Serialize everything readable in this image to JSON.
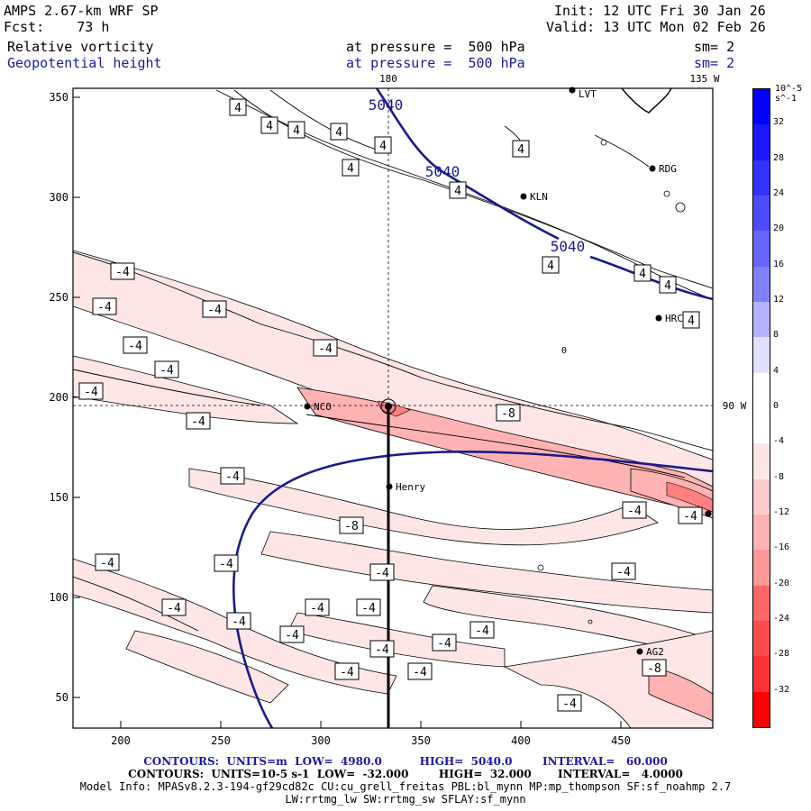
{
  "header": {
    "title": "AMPS 2.67-km WRF SP",
    "fcst_label": "Fcst:",
    "fcst_value": "73 h",
    "init": "Init: 12 UTC Fri 30 Jan 26",
    "valid": "Valid: 13 UTC Mon 02 Feb 26",
    "field1": "Relative vorticity",
    "field1_level": "at pressure =  500 hPa",
    "field1_sm": "sm= 2",
    "field2": "Geopotential height",
    "field2_level": "at pressure =  500 hPa",
    "field2_sm": "sm= 2"
  },
  "map": {
    "lon_180": "180",
    "lon_135w": "135 W",
    "lon_90w": "90 W",
    "x_ticks": [
      "200",
      "250",
      "300",
      "350",
      "400",
      "450"
    ],
    "y_ticks": [
      "350",
      "300",
      "250",
      "200",
      "150",
      "100",
      "50"
    ],
    "stations": [
      "KLN",
      "RDG",
      "HRC",
      "NCO",
      "Henry",
      "AG2",
      "LVT"
    ],
    "height_labels": [
      "5040",
      "5040",
      "5040"
    ],
    "contour_labels_pos": [
      "4",
      "4",
      "4",
      "4",
      "4",
      "4",
      "4",
      "4",
      "4",
      "4",
      "4",
      "4"
    ],
    "contour_labels_neg": [
      "-4",
      "-4",
      "-4",
      "-4",
      "-4",
      "-4",
      "-4",
      "-4",
      "-4",
      "-8",
      "-4",
      "-4",
      "-4",
      "-4",
      "-4",
      "-4",
      "-4",
      "-4",
      "-4",
      "-4",
      "-4",
      "-4",
      "-4",
      "-4",
      "-4",
      "-4",
      "-4",
      "-8"
    ],
    "zero_label": "0"
  },
  "colorbar": {
    "units": "10^-5 s^-1",
    "labels": [
      "32",
      "28",
      "24",
      "20",
      "16",
      "12",
      "8",
      "4",
      "0",
      "-4",
      "-8",
      "-12",
      "-16",
      "-20",
      "-24",
      "-28",
      "-32"
    ],
    "colors": [
      "#0000ff",
      "#1a1aff",
      "#3333ff",
      "#4d4dff",
      "#6666ff",
      "#8080ff",
      "#b3b3ff",
      "#e0e0ff",
      "#ffffff",
      "#ffffff",
      "#ffe6e6",
      "#ffcccc",
      "#ffb3b3",
      "#ff9999",
      "#ff6666",
      "#ff4d4d",
      "#ff3333",
      "#ff0000"
    ]
  },
  "footer": {
    "line1": "CONTOURS:  UNITS=m  LOW=  4980.0          HIGH=  5040.0        INTERVAL=   60.000",
    "line2": "CONTOURS:  UNITS=10-5 s-1  LOW=  -32.000        HIGH=  32.000       INTERVAL=   4.0000",
    "line3": "Model Info: MPASv8.2.3-194-gf29cd82c CU:cu_grell_freitas PBL:bl_mynn MP:mp_thompson SF:sf_noahmp 2.7",
    "line4": "LW:rrtmg_lw SW:rrtmg_sw SFLAY:sf_mynn"
  }
}
